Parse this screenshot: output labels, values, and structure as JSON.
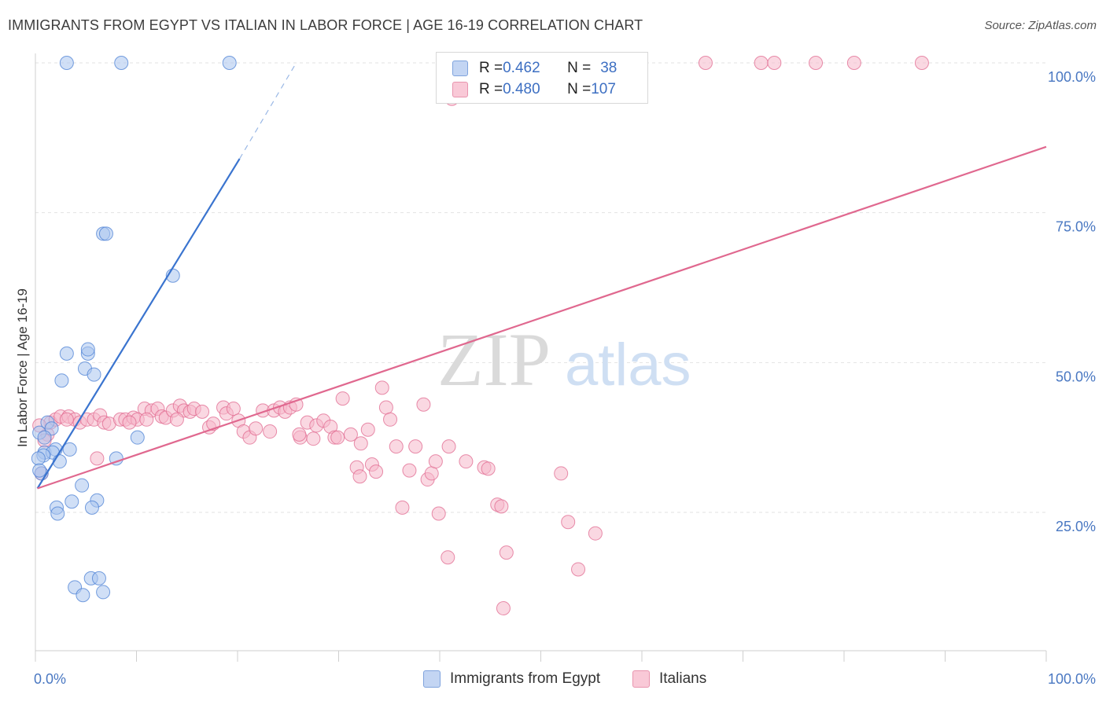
{
  "header": {
    "title": "IMMIGRANTS FROM EGYPT VS ITALIAN IN LABOR FORCE | AGE 16-19 CORRELATION CHART",
    "source": "Source: ZipAtlas.com"
  },
  "watermark": {
    "zip": "ZIP",
    "atlas": "atlas"
  },
  "legend": {
    "rows": [
      {
        "r_label": "R = ",
        "r_value": "0.462",
        "n_label": "N = ",
        "n_value": "38",
        "color": "#a9c4ef"
      },
      {
        "r_label": "R = ",
        "r_value": "0.480",
        "n_label": "N = ",
        "n_value": "107",
        "color": "#f5b8ca"
      }
    ]
  },
  "bottom_legend": {
    "items": [
      {
        "label": "Immigrants from Egypt",
        "color": "#a9c4ef"
      },
      {
        "label": "Italians",
        "color": "#f5b8ca"
      }
    ]
  },
  "chart_data": {
    "type": "scatter",
    "title": "IMMIGRANTS FROM EGYPT VS ITALIAN IN LABOR FORCE | AGE 16-19 CORRELATION CHART",
    "xlabel": "",
    "ylabel": "In Labor Force | Age 16-19",
    "xlim": [
      0,
      100
    ],
    "ylim": [
      0,
      105
    ],
    "x_tick_labels": [
      "0.0%",
      "100.0%"
    ],
    "y_ticks": [
      25,
      50,
      75,
      100
    ],
    "y_tick_labels": [
      "25.0%",
      "50.0%",
      "75.0%",
      "100.0%"
    ],
    "grid": true,
    "legend_position": "top-center",
    "series": [
      {
        "name": "Immigrants from Egypt",
        "color": "#4a7fd4",
        "fill": "#a9c4ef",
        "r": 0.462,
        "n": 38,
        "trend": {
          "x0": 0.2,
          "y0": 29,
          "x1": 20.2,
          "y1": 84,
          "dash_to_x": 25.8,
          "dash_to_y": 100
        },
        "points": [
          [
            3.1,
            100
          ],
          [
            8.5,
            100
          ],
          [
            19.2,
            100
          ],
          [
            6.7,
            71.5
          ],
          [
            7.0,
            71.5
          ],
          [
            13.6,
            64.5
          ],
          [
            3.1,
            51.5
          ],
          [
            5.2,
            51.5
          ],
          [
            5.2,
            52.2
          ],
          [
            2.6,
            47
          ],
          [
            4.9,
            49
          ],
          [
            5.8,
            48
          ],
          [
            0.4,
            38.3
          ],
          [
            1.2,
            40
          ],
          [
            1.6,
            39
          ],
          [
            0.9,
            37.5
          ],
          [
            0.9,
            35
          ],
          [
            2.0,
            35.5
          ],
          [
            1.7,
            35
          ],
          [
            0.8,
            34.5
          ],
          [
            0.3,
            34
          ],
          [
            3.4,
            35.5
          ],
          [
            2.4,
            33.5
          ],
          [
            10.1,
            37.5
          ],
          [
            8.0,
            34.0
          ],
          [
            0.6,
            31.5
          ],
          [
            4.6,
            29.5
          ],
          [
            6.1,
            27.0
          ],
          [
            5.6,
            25.8
          ],
          [
            2.1,
            25.8
          ],
          [
            3.6,
            26.8
          ],
          [
            2.2,
            24.8
          ],
          [
            3.9,
            12.5
          ],
          [
            4.7,
            11.2
          ],
          [
            5.5,
            14
          ],
          [
            6.3,
            14
          ],
          [
            6.7,
            11.7
          ],
          [
            0.4,
            32.0
          ]
        ]
      },
      {
        "name": "Italians",
        "color": "#e0688f",
        "fill": "#f5b8ca",
        "r": 0.48,
        "n": 107,
        "trend": {
          "x0": 0.2,
          "y0": 29,
          "x1": 100,
          "y1": 86
        },
        "points": [
          [
            48.4,
            100
          ],
          [
            49.0,
            100
          ],
          [
            51.1,
            100
          ],
          [
            54.9,
            100
          ],
          [
            56.0,
            100
          ],
          [
            56.9,
            100
          ],
          [
            57.2,
            100
          ],
          [
            66.3,
            100
          ],
          [
            71.8,
            100
          ],
          [
            73.1,
            100
          ],
          [
            77.2,
            100
          ],
          [
            81.0,
            100
          ],
          [
            87.7,
            100
          ],
          [
            41.2,
            94
          ],
          [
            1.2,
            38
          ],
          [
            1.5,
            40
          ],
          [
            2.0,
            40.5
          ],
          [
            2.5,
            41
          ],
          [
            3.3,
            41
          ],
          [
            3.9,
            40.5
          ],
          [
            4.4,
            40
          ],
          [
            5.1,
            40.5
          ],
          [
            5.8,
            40.5
          ],
          [
            6.4,
            41.2
          ],
          [
            6.8,
            40.0
          ],
          [
            7.3,
            39.8
          ],
          [
            8.4,
            40.5
          ],
          [
            8.9,
            40.5
          ],
          [
            9.7,
            40.8
          ],
          [
            10.1,
            40.5
          ],
          [
            10.8,
            42.3
          ],
          [
            11.5,
            42.0
          ],
          [
            12.1,
            42.3
          ],
          [
            12.5,
            41.0
          ],
          [
            12.9,
            40.8
          ],
          [
            13.6,
            42.0
          ],
          [
            14.3,
            42.8
          ],
          [
            14.7,
            42.0
          ],
          [
            15.3,
            41.8
          ],
          [
            15.7,
            42.3
          ],
          [
            16.5,
            41.8
          ],
          [
            17.2,
            39.2
          ],
          [
            17.6,
            39.8
          ],
          [
            18.6,
            42.5
          ],
          [
            18.9,
            41.5
          ],
          [
            19.6,
            42.3
          ],
          [
            20.1,
            40.3
          ],
          [
            20.6,
            38.5
          ],
          [
            21.2,
            37.5
          ],
          [
            21.8,
            39.0
          ],
          [
            22.5,
            42.0
          ],
          [
            23.2,
            38.5
          ],
          [
            23.6,
            42.0
          ],
          [
            24.2,
            42.5
          ],
          [
            24.7,
            41.8
          ],
          [
            25.2,
            42.5
          ],
          [
            25.8,
            43.0
          ],
          [
            26.2,
            37.5
          ],
          [
            26.9,
            40.0
          ],
          [
            27.5,
            37.3
          ],
          [
            27.8,
            39.5
          ],
          [
            28.5,
            40.3
          ],
          [
            29.2,
            39.3
          ],
          [
            29.6,
            37.5
          ],
          [
            29.9,
            37.5
          ],
          [
            30.4,
            44.0
          ],
          [
            31.2,
            38.0
          ],
          [
            32.2,
            36.5
          ],
          [
            32.9,
            38.8
          ],
          [
            34.3,
            45.8
          ],
          [
            34.7,
            42.5
          ],
          [
            35.1,
            40.5
          ],
          [
            33.3,
            33.0
          ],
          [
            31.8,
            32.5
          ],
          [
            32.1,
            31.0
          ],
          [
            33.7,
            31.8
          ],
          [
            35.7,
            36.0
          ],
          [
            37.0,
            32.0
          ],
          [
            37.6,
            36.0
          ],
          [
            38.4,
            43.0
          ],
          [
            38.8,
            30.5
          ],
          [
            39.2,
            31.5
          ],
          [
            39.6,
            33.5
          ],
          [
            40.9,
            36.0
          ],
          [
            42.6,
            33.5
          ],
          [
            44.4,
            32.5
          ],
          [
            44.8,
            32.3
          ],
          [
            45.7,
            26.3
          ],
          [
            46.1,
            26.0
          ],
          [
            46.6,
            18.3
          ],
          [
            46.3,
            9.0
          ],
          [
            36.3,
            25.8
          ],
          [
            39.9,
            24.8
          ],
          [
            40.8,
            17.5
          ],
          [
            52.7,
            23.4
          ],
          [
            52.0,
            31.5
          ],
          [
            53.7,
            15.5
          ],
          [
            55.4,
            21.5
          ],
          [
            0.6,
            31.5
          ],
          [
            0.9,
            37.0
          ],
          [
            3.1,
            40.5
          ],
          [
            6.1,
            34.0
          ],
          [
            9.3,
            40.0
          ],
          [
            11.0,
            40.5
          ],
          [
            0.4,
            39.5
          ],
          [
            26.1,
            38.0
          ],
          [
            14.0,
            40.5
          ]
        ]
      }
    ]
  }
}
